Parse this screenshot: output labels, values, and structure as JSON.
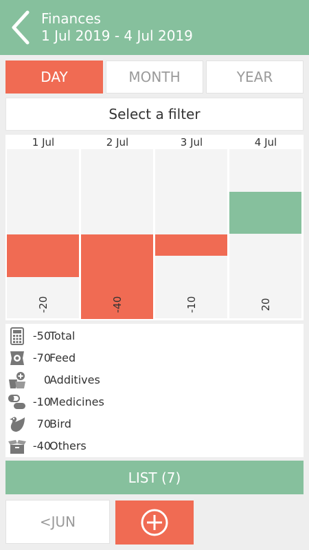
{
  "header": {
    "title": "Finances",
    "subtitle": "1 Jul 2019 - 4 Jul 2019"
  },
  "tabs": [
    {
      "label": "DAY",
      "active": true
    },
    {
      "label": "MONTH",
      "active": false
    },
    {
      "label": "YEAR",
      "active": false
    }
  ],
  "filter": {
    "label": "Select a filter"
  },
  "chart_data": {
    "type": "bar",
    "categories": [
      "1 Jul",
      "2 Jul",
      "3 Jul",
      "4 Jul"
    ],
    "values": [
      -20,
      -40,
      -10,
      20
    ],
    "value_labels": [
      "-20",
      "-40",
      "-10",
      "20"
    ],
    "ylim": [
      -40,
      40
    ],
    "colors": {
      "negative": "#f06b53",
      "positive": "#86c09d"
    }
  },
  "summary": [
    {
      "icon": "calculator-icon",
      "value": "-50",
      "label": "Total"
    },
    {
      "icon": "feed-bag-icon",
      "value": "-70",
      "label": "Feed"
    },
    {
      "icon": "additives-basket-icon",
      "value": "0",
      "label": "Additives"
    },
    {
      "icon": "pills-icon",
      "value": "-10",
      "label": "Medicines"
    },
    {
      "icon": "bird-icon",
      "value": "70",
      "label": "Bird"
    },
    {
      "icon": "box-icon",
      "value": "-40",
      "label": "Others"
    }
  ],
  "list_button": {
    "label": "LIST (7)"
  },
  "prev_button": {
    "label": "<JUN"
  },
  "colors": {
    "accent_green": "#86c09d",
    "accent_red": "#f06b53"
  }
}
